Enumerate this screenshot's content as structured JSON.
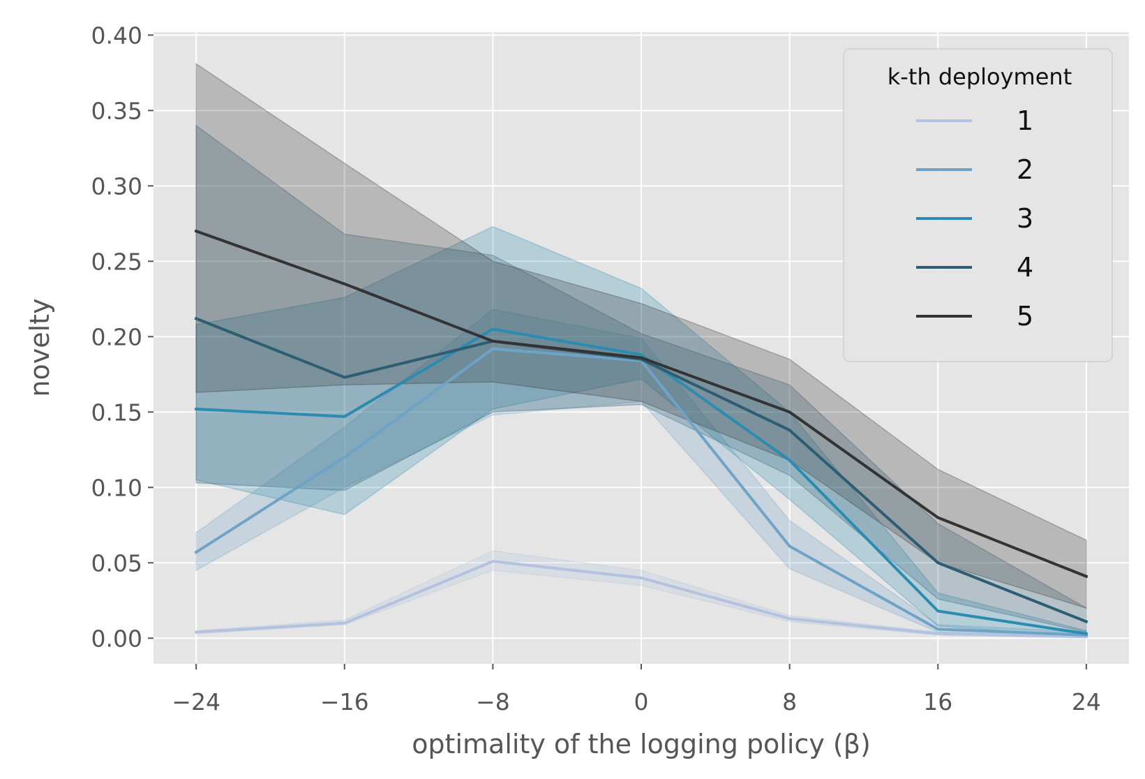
{
  "chart_data": {
    "type": "line",
    "title": "",
    "xlabel": "optimality of the logging policy (β)",
    "ylabel": "novelty",
    "x": [
      -24,
      -16,
      -8,
      0,
      8,
      16,
      24
    ],
    "x_tick_labels": [
      "−24",
      "−16",
      "−8",
      "0",
      "8",
      "16",
      "24"
    ],
    "y_ticks": [
      0.0,
      0.05,
      0.1,
      0.15,
      0.2,
      0.25,
      0.3,
      0.35,
      0.4
    ],
    "y_tick_labels": [
      "0.00",
      "0.05",
      "0.10",
      "0.15",
      "0.20",
      "0.25",
      "0.30",
      "0.35",
      "0.40"
    ],
    "xlim": [
      -26.3,
      26.3
    ],
    "ylim": [
      -0.017,
      0.402
    ],
    "grid": true,
    "legend_title": "k-th deployment",
    "legend_position": "top-right",
    "series": [
      {
        "name": "1",
        "color": "#b3c3df",
        "values": [
          0.004,
          0.01,
          0.051,
          0.04,
          0.013,
          0.003,
          0.001
        ],
        "lower": [
          0.003,
          0.009,
          0.045,
          0.035,
          0.011,
          0.002,
          0.0
        ],
        "upper": [
          0.005,
          0.012,
          0.058,
          0.045,
          0.015,
          0.004,
          0.002
        ]
      },
      {
        "name": "2",
        "color": "#6ea3c7",
        "values": [
          0.057,
          0.12,
          0.192,
          0.184,
          0.061,
          0.006,
          0.002
        ],
        "lower": [
          0.045,
          0.1,
          0.148,
          0.157,
          0.046,
          0.004,
          0.001
        ],
        "upper": [
          0.07,
          0.14,
          0.218,
          0.199,
          0.078,
          0.009,
          0.004
        ]
      },
      {
        "name": "3",
        "color": "#2b8bb0",
        "values": [
          0.152,
          0.147,
          0.205,
          0.188,
          0.118,
          0.018,
          0.003
        ],
        "lower": [
          0.105,
          0.082,
          0.152,
          0.172,
          0.092,
          0.008,
          0.001
        ],
        "upper": [
          0.208,
          0.226,
          0.273,
          0.232,
          0.15,
          0.03,
          0.005
        ]
      },
      {
        "name": "4",
        "color": "#2c5d73",
        "values": [
          0.212,
          0.173,
          0.197,
          0.185,
          0.138,
          0.05,
          0.011
        ],
        "lower": [
          0.103,
          0.098,
          0.15,
          0.155,
          0.108,
          0.026,
          0.004
        ],
        "upper": [
          0.34,
          0.268,
          0.254,
          0.202,
          0.168,
          0.076,
          0.02
        ]
      },
      {
        "name": "5",
        "color": "#333333",
        "values": [
          0.27,
          0.235,
          0.197,
          0.186,
          0.15,
          0.08,
          0.041
        ],
        "lower": [
          0.163,
          0.168,
          0.17,
          0.157,
          0.118,
          0.05,
          0.02
        ],
        "upper": [
          0.381,
          0.315,
          0.25,
          0.222,
          0.185,
          0.112,
          0.065
        ]
      }
    ]
  }
}
